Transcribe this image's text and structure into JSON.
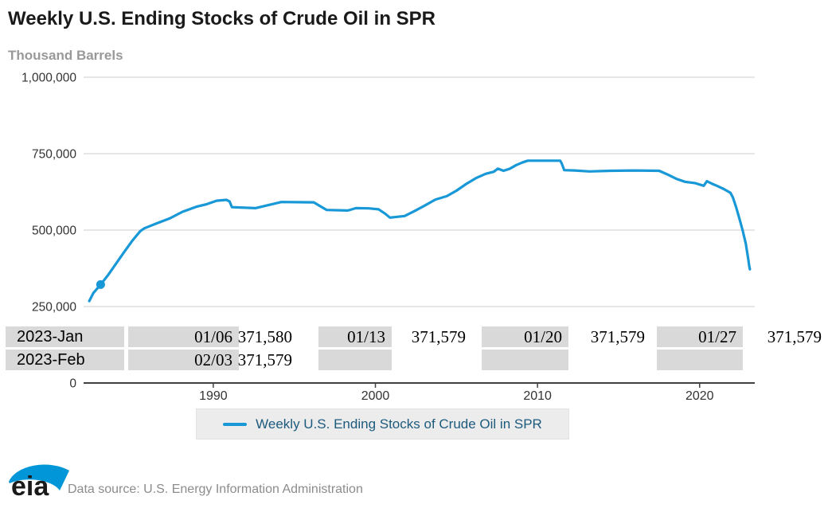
{
  "header": {
    "title": "Weekly U.S. Ending Stocks of Crude Oil in SPR",
    "subtitle": "Thousand Barrels"
  },
  "chart_data": {
    "type": "line",
    "title": "Weekly U.S. Ending Stocks of Crude Oil in SPR",
    "ylabel": "Thousand Barrels",
    "xlabel": "",
    "xlim": [
      1982.0,
      2023.4
    ],
    "ylim": [
      0,
      1000000
    ],
    "grid": "horizontal",
    "legend_position": "bottom",
    "x_ticks": [
      {
        "label": "1990",
        "value": 1990
      },
      {
        "label": "2000",
        "value": 2000
      },
      {
        "label": "2010",
        "value": 2010
      },
      {
        "label": "2020",
        "value": 2020
      }
    ],
    "y_ticks": [
      {
        "label": "0",
        "value": 0
      },
      {
        "label": "250,000",
        "value": 250000
      },
      {
        "label": "500,000",
        "value": 500000
      },
      {
        "label": "750,000",
        "value": 750000
      },
      {
        "label": "1,000,000",
        "value": 1000000
      }
    ],
    "series": [
      {
        "name": "Weekly U.S. Ending Stocks of Crude Oil in SPR",
        "color": "#1898d6",
        "points": [
          [
            1982.35,
            268000
          ],
          [
            1982.6,
            294000
          ],
          [
            1983.05,
            322000
          ],
          [
            1983.5,
            352000
          ],
          [
            1984.0,
            390000
          ],
          [
            1984.5,
            428000
          ],
          [
            1985.0,
            465000
          ],
          [
            1985.5,
            497000
          ],
          [
            1985.75,
            506000
          ],
          [
            1986.5,
            522000
          ],
          [
            1987.3,
            538000
          ],
          [
            1988.1,
            560000
          ],
          [
            1989.0,
            577000
          ],
          [
            1989.6,
            585000
          ],
          [
            1990.2,
            596000
          ],
          [
            1990.8,
            599000
          ],
          [
            1991.0,
            594000
          ],
          [
            1991.15,
            575000
          ],
          [
            1992.6,
            572000
          ],
          [
            1993.5,
            583000
          ],
          [
            1994.2,
            592000
          ],
          [
            1996.2,
            591000
          ],
          [
            1996.6,
            578000
          ],
          [
            1997.0,
            566000
          ],
          [
            1998.3,
            564000
          ],
          [
            1998.8,
            572000
          ],
          [
            1999.6,
            571000
          ],
          [
            2000.2,
            568000
          ],
          [
            2000.6,
            554000
          ],
          [
            2000.9,
            541000
          ],
          [
            2001.8,
            546000
          ],
          [
            2002.4,
            562000
          ],
          [
            2003.0,
            579000
          ],
          [
            2003.7,
            600000
          ],
          [
            2004.4,
            611000
          ],
          [
            2005.0,
            629000
          ],
          [
            2005.6,
            651000
          ],
          [
            2006.2,
            670000
          ],
          [
            2006.8,
            684000
          ],
          [
            2007.3,
            691000
          ],
          [
            2007.55,
            701000
          ],
          [
            2007.9,
            694000
          ],
          [
            2008.3,
            701000
          ],
          [
            2008.7,
            713000
          ],
          [
            2009.1,
            722000
          ],
          [
            2009.4,
            727000
          ],
          [
            2011.4,
            727000
          ],
          [
            2011.5,
            717000
          ],
          [
            2011.65,
            696000
          ],
          [
            2012.3,
            695000
          ],
          [
            2013.2,
            692000
          ],
          [
            2014.5,
            694000
          ],
          [
            2016.0,
            695000
          ],
          [
            2017.5,
            694000
          ],
          [
            2018.1,
            680000
          ],
          [
            2018.6,
            667000
          ],
          [
            2019.1,
            658000
          ],
          [
            2019.7,
            654000
          ],
          [
            2020.25,
            645000
          ],
          [
            2020.45,
            660000
          ],
          [
            2020.75,
            652000
          ],
          [
            2021.1,
            644000
          ],
          [
            2021.5,
            634000
          ],
          [
            2021.9,
            622000
          ],
          [
            2022.05,
            607000
          ],
          [
            2022.25,
            575000
          ],
          [
            2022.45,
            538000
          ],
          [
            2022.65,
            500000
          ],
          [
            2022.85,
            455000
          ],
          [
            2023.0,
            404000
          ],
          [
            2023.05,
            385000
          ],
          [
            2023.1,
            372000
          ]
        ],
        "marker_point": [
          1983.05,
          322000
        ]
      }
    ]
  },
  "table": {
    "rows": [
      {
        "cells": [
          {
            "text": "2023-Jan"
          },
          {
            "text": "01/06"
          },
          {
            "text": "371,580"
          },
          {
            "text": "01/13"
          },
          {
            "text": "371,579"
          },
          {
            "text": "01/20"
          },
          {
            "text": "371,579"
          },
          {
            "text": "01/27"
          },
          {
            "text": "371,579"
          }
        ]
      },
      {
        "cells": [
          {
            "text": "2023-Feb"
          },
          {
            "text": "02/03"
          },
          {
            "text": "371,579"
          },
          {
            "text": ""
          },
          {
            "text": ""
          },
          {
            "text": ""
          },
          {
            "text": ""
          },
          {
            "text": ""
          },
          {
            "text": ""
          }
        ]
      }
    ]
  },
  "legend": {
    "label": "Weekly U.S. Ending Stocks of Crude Oil in SPR"
  },
  "footer": {
    "logo_text": "eia",
    "source": "Data source: U.S. Energy Information Administration"
  },
  "colors": {
    "line": "#1898d6",
    "legend_text": "#1d5a7d",
    "grid": "#cccccc",
    "axis": "#404040",
    "table_cell": "#d9d9d9",
    "subtitle": "#999999",
    "source_text": "#8c8c8c"
  }
}
